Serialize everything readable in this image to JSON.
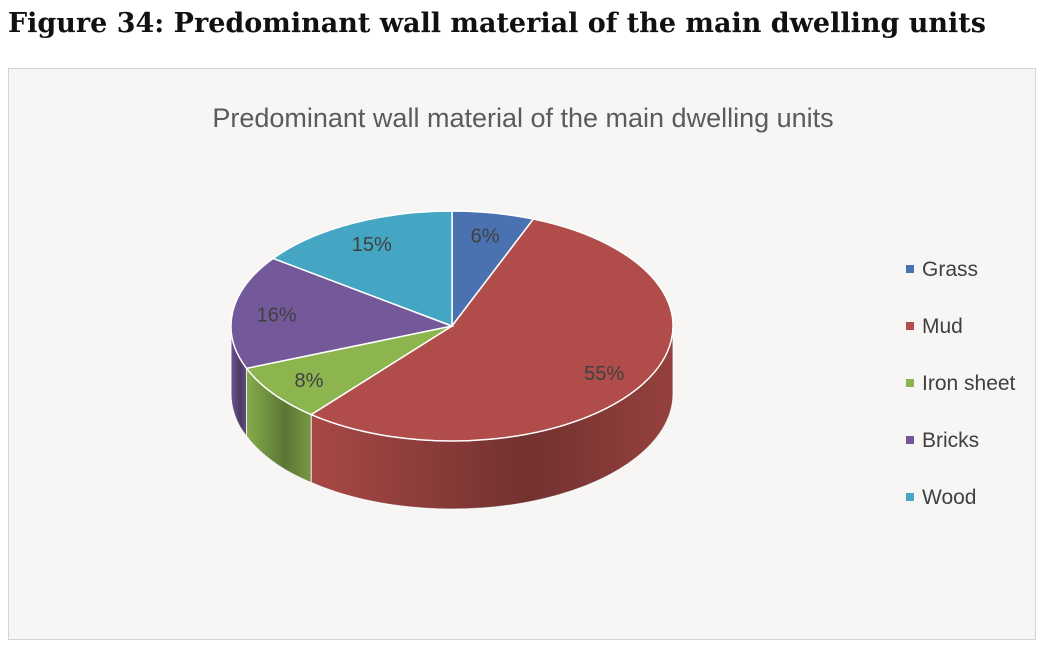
{
  "figure": {
    "caption": "Figure 34: Predominant wall material of the main dwelling units"
  },
  "chart_data": {
    "type": "pie",
    "title": "Predominant wall material of the main dwelling units",
    "legend_position": "right",
    "slices": [
      {
        "label": "Grass",
        "value": 6,
        "data_label": "6%",
        "color": "#4a71b0"
      },
      {
        "label": "Mud",
        "value": 55,
        "data_label": "55%",
        "color": "#b04c49"
      },
      {
        "label": "Iron sheet",
        "value": 8,
        "data_label": "8%",
        "color": "#8cb54f"
      },
      {
        "label": "Bricks",
        "value": 16,
        "data_label": "16%",
        "color": "#74599a"
      },
      {
        "label": "Wood",
        "value": 15,
        "data_label": "15%",
        "color": "#44a6c2"
      }
    ]
  }
}
